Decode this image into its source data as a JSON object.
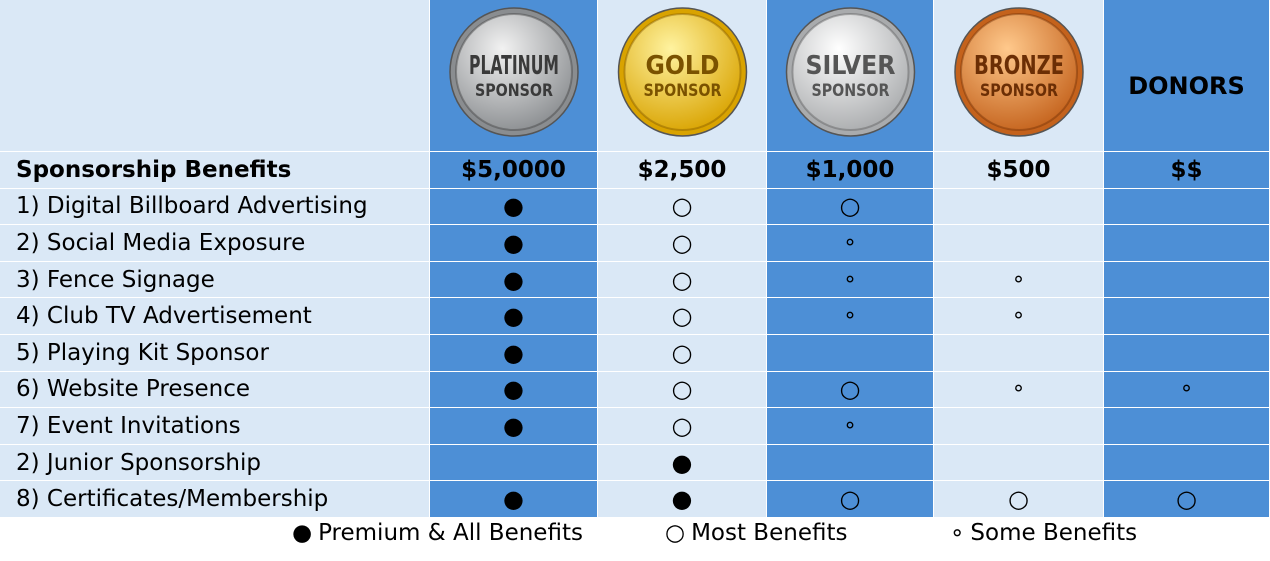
{
  "columns": [
    {
      "badge": [
        "PLATINUM",
        "SPONSOR"
      ],
      "price": "$5,0000"
    },
    {
      "badge": [
        "GOLD",
        "SPONSOR"
      ],
      "price": "$2,500"
    },
    {
      "badge": [
        "SILVER",
        "SPONSOR"
      ],
      "price": "$1,000"
    },
    {
      "badge": [
        "BRONZE",
        "SPONSOR"
      ],
      "price": "$500"
    },
    {
      "label": "DONORS",
      "price": "$$"
    }
  ],
  "table": {
    "header": "Sponsorship Benefits",
    "rows": [
      {
        "benefit": "1) Digital Billboard Advertising",
        "cells": [
          "●",
          "○",
          "○",
          null,
          null
        ]
      },
      {
        "benefit": "2) Social Media Exposure",
        "cells": [
          "●",
          "○",
          "∘",
          null,
          null
        ]
      },
      {
        "benefit": "3) Fence Signage",
        "cells": [
          "●",
          "○",
          "∘",
          "∘",
          null
        ]
      },
      {
        "benefit": "4) Club TV Advertisement",
        "cells": [
          "●",
          "○",
          "∘",
          "∘",
          null
        ]
      },
      {
        "benefit": "5) Playing Kit Sponsor",
        "cells": [
          "●",
          "○",
          null,
          null,
          null
        ]
      },
      {
        "benefit": "6) Website Presence",
        "cells": [
          "●",
          "○",
          "○",
          "∘",
          "∘"
        ]
      },
      {
        "benefit": "7) Event Invitations",
        "cells": [
          "●",
          "○",
          "∘",
          null,
          null
        ]
      },
      {
        "benefit": "2) Junior Sponsorship",
        "cells": [
          null,
          "●",
          null,
          null,
          null
        ]
      },
      {
        "benefit": "8) Certificates/Membership",
        "cells": [
          "●",
          "●",
          "○",
          "○",
          "○"
        ]
      }
    ]
  },
  "legend": [
    {
      "symbol": "●",
      "label": "Premium & All Benefits"
    },
    {
      "symbol": "○",
      "label": "Most Benefits"
    },
    {
      "symbol": "∘",
      "label": "Some Benefits"
    }
  ]
}
